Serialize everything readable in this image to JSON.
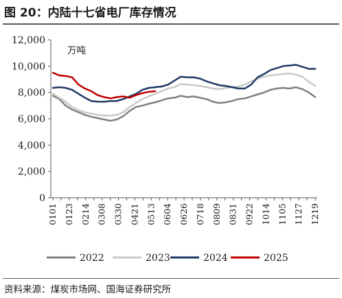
{
  "figure": {
    "title": "图 20：内陆十七省电厂库存情况",
    "source": "资料来源：煤炭市场网、国海证券研究所"
  },
  "chart_data": {
    "type": "line",
    "unit": "万吨",
    "ylim": [
      0,
      12000
    ],
    "yticks": [
      0,
      2000,
      4000,
      6000,
      8000,
      10000,
      12000
    ],
    "ytick_labels": [
      "0",
      "2,000",
      "4,000",
      "6,000",
      "8,000",
      "10,000",
      "12,000"
    ],
    "xtick_labels": [
      "0101",
      "0123",
      "0214",
      "0308",
      "0330",
      "0421",
      "0513",
      "0604",
      "0626",
      "0718",
      "0809",
      "0831",
      "0922",
      "1014",
      "1105",
      "1127",
      "1219"
    ],
    "grid": false,
    "legend_position": "bottom",
    "series": [
      {
        "name": "2022",
        "color": "#7f7f7f",
        "values": [
          7750,
          7500,
          7000,
          6700,
          6500,
          6300,
          6150,
          6050,
          5950,
          5850,
          5950,
          6200,
          6600,
          6900,
          7000,
          7150,
          7250,
          7400,
          7550,
          7600,
          7750,
          7650,
          7700,
          7600,
          7500,
          7300,
          7200,
          7250,
          7350,
          7500,
          7550,
          7700,
          7850,
          8000,
          8200,
          8300,
          8350,
          8300,
          8400,
          8250,
          8000,
          7650
        ]
      },
      {
        "name": "2023",
        "color": "#c8c8c8",
        "values": [
          7900,
          7600,
          7300,
          6900,
          6650,
          6500,
          6400,
          6300,
          6250,
          6250,
          6300,
          6500,
          6900,
          7200,
          7500,
          7700,
          7900,
          8100,
          8300,
          8400,
          8650,
          8600,
          8550,
          8500,
          8400,
          8300,
          8250,
          8350,
          8400,
          8450,
          8600,
          8850,
          9050,
          9200,
          9300,
          9350,
          9400,
          9450,
          9350,
          9200,
          8800,
          8500
        ]
      },
      {
        "name": "2024",
        "color": "#1f3864",
        "values": [
          8350,
          8400,
          8350,
          8200,
          7900,
          7600,
          7350,
          7300,
          7300,
          7350,
          7350,
          7500,
          7700,
          7900,
          8200,
          8350,
          8400,
          8450,
          8600,
          8900,
          9200,
          9150,
          9150,
          9050,
          8850,
          8700,
          8550,
          8500,
          8400,
          8300,
          8300,
          8600,
          9150,
          9400,
          9700,
          9850,
          10000,
          10050,
          10100,
          9950,
          9800,
          9800
        ]
      },
      {
        "name": "2025",
        "color": "#c00000",
        "values": [
          9500,
          9300,
          9250,
          9150,
          8600,
          8300,
          8100,
          7800,
          7650,
          7550,
          7650,
          7700,
          7600,
          7800,
          7950,
          8050,
          8100
        ]
      }
    ]
  }
}
